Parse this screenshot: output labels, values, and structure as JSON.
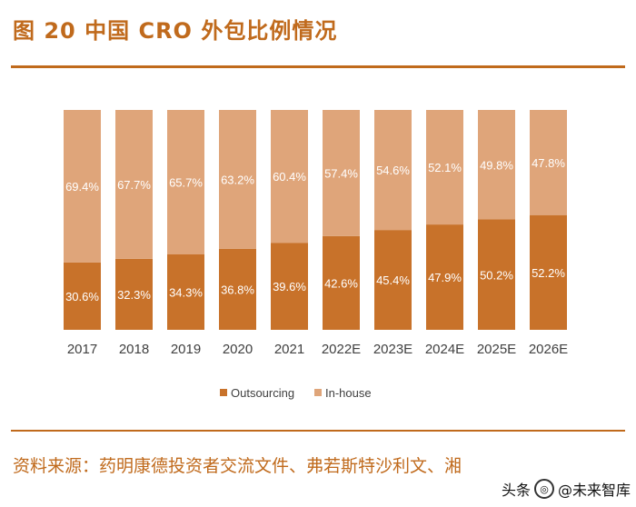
{
  "figure": {
    "title": "图 20 中国 CRO 外包比例情况",
    "source": "资料来源：药明康德投资者交流文件、弗若斯特沙利文、湘",
    "watermark": {
      "platform": "头条",
      "account": "@未来智库"
    }
  },
  "colors": {
    "accent": "#c06a1c",
    "outsourcing": "#c8722a",
    "inhouse": "#dfa57a"
  },
  "chart_data": {
    "type": "bar",
    "stacked": true,
    "percent": true,
    "title": "",
    "xlabel": "",
    "ylabel": "",
    "ylim": [
      0,
      100
    ],
    "categories": [
      "2017",
      "2018",
      "2019",
      "2020",
      "2021",
      "2022E",
      "2023E",
      "2024E",
      "2025E",
      "2026E"
    ],
    "series": [
      {
        "name": "Outsourcing",
        "values": [
          30.6,
          32.3,
          34.3,
          36.8,
          39.6,
          42.6,
          45.4,
          47.9,
          50.2,
          52.2
        ],
        "labels": [
          "30.6%",
          "32.3%",
          "34.3%",
          "36.8%",
          "39.6%",
          "42.6%",
          "45.4%",
          "47.9%",
          "50.2%",
          "52.2%"
        ]
      },
      {
        "name": "In-house",
        "values": [
          69.4,
          67.7,
          65.7,
          63.2,
          60.4,
          57.4,
          54.6,
          52.1,
          49.8,
          47.8
        ],
        "labels": [
          "69.4%",
          "67.7%",
          "65.7%",
          "63.2%",
          "60.4%",
          "57.4%",
          "54.6%",
          "52.1%",
          "49.8%",
          "47.8%"
        ]
      }
    ],
    "legend": {
      "position": "bottom",
      "entries": [
        "Outsourcing",
        "In-house"
      ]
    }
  }
}
